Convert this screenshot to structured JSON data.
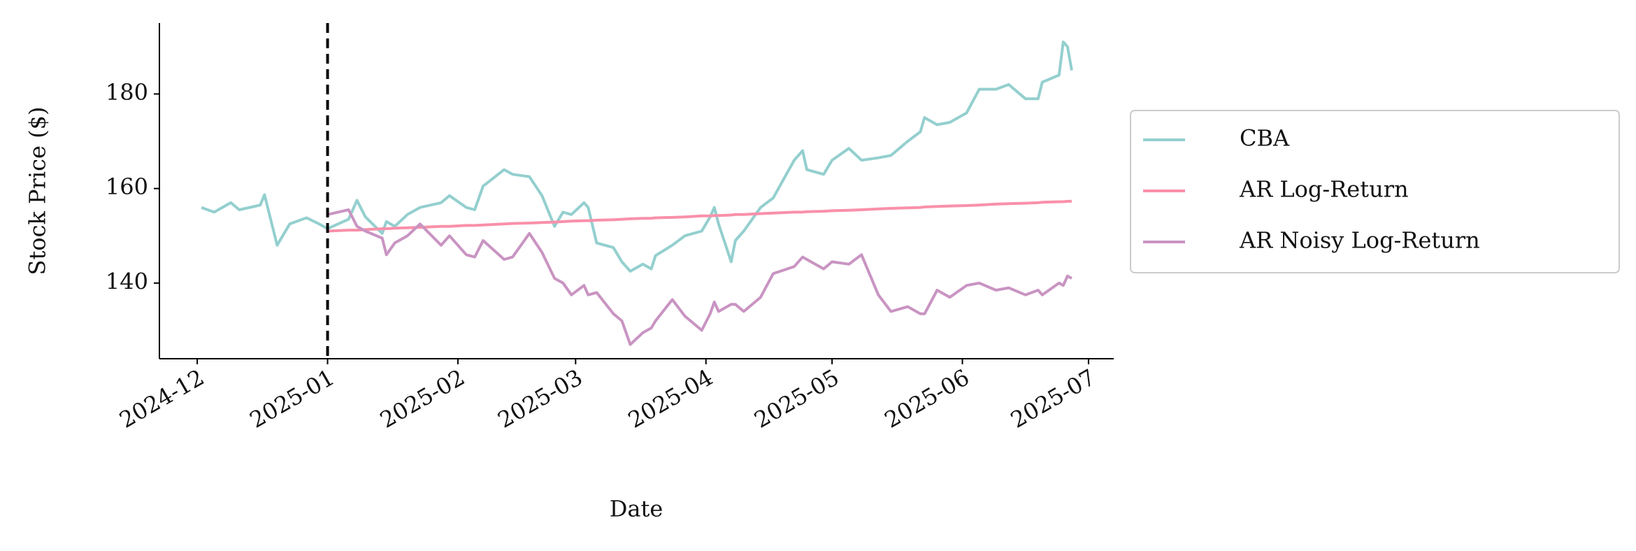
{
  "chart_data": {
    "type": "line",
    "x_label": "Date",
    "y_label": "Stock Price ($)",
    "x": [
      "2024-12-02",
      "2024-12-05",
      "2024-12-09",
      "2024-12-11",
      "2024-12-16",
      "2024-12-17",
      "2024-12-20",
      "2024-12-23",
      "2024-12-26",
      "2024-12-27",
      "2024-12-30",
      "2025-01-01",
      "2025-01-06",
      "2025-01-08",
      "2025-01-10",
      "2025-01-14",
      "2025-01-15",
      "2025-01-17",
      "2025-01-20",
      "2025-01-23",
      "2025-01-28",
      "2025-01-30",
      "2025-02-03",
      "2025-02-05",
      "2025-02-07",
      "2025-02-12",
      "2025-02-14",
      "2025-02-18",
      "2025-02-21",
      "2025-02-24",
      "2025-02-26",
      "2025-02-28",
      "2025-03-03",
      "2025-03-04",
      "2025-03-06",
      "2025-03-10",
      "2025-03-12",
      "2025-03-14",
      "2025-03-17",
      "2025-03-19",
      "2025-03-20",
      "2025-03-24",
      "2025-03-27",
      "2025-03-31",
      "2025-04-02",
      "2025-04-03",
      "2025-04-04",
      "2025-04-07",
      "2025-04-08",
      "2025-04-10",
      "2025-04-14",
      "2025-04-17",
      "2025-04-22",
      "2025-04-24",
      "2025-04-25",
      "2025-04-29",
      "2025-05-01",
      "2025-05-05",
      "2025-05-08",
      "2025-05-12",
      "2025-05-15",
      "2025-05-19",
      "2025-05-22",
      "2025-05-23",
      "2025-05-26",
      "2025-05-29",
      "2025-06-02",
      "2025-06-05",
      "2025-06-09",
      "2025-06-12",
      "2025-06-16",
      "2025-06-19",
      "2025-06-20",
      "2025-06-24",
      "2025-06-25",
      "2025-06-26",
      "2025-06-27"
    ],
    "series": [
      {
        "name": "CBA",
        "color": "#94cfcf",
        "values": [
          156,
          155,
          157,
          155.5,
          156.5,
          158.7,
          148,
          152.5,
          153.5,
          153.8,
          152.5,
          151.5,
          153.5,
          157.5,
          154,
          150.5,
          153,
          152,
          154.5,
          156,
          157,
          158.5,
          156,
          155.5,
          160.5,
          164,
          163,
          162.5,
          158.5,
          152,
          155,
          154.5,
          157,
          156,
          148.5,
          147.5,
          144.5,
          142.5,
          144,
          143,
          145.8,
          148,
          150,
          151,
          154,
          156,
          152.5,
          144.5,
          149,
          151,
          156,
          158,
          166,
          168,
          164,
          163,
          166,
          168.5,
          166,
          166.5,
          167,
          170,
          172,
          175,
          173.5,
          174,
          176,
          181,
          181,
          182,
          179,
          179,
          182.5,
          184,
          191,
          190,
          185
        ]
      },
      {
        "name": "AR Log-Return",
        "color": "#f990aa",
        "values": [
          null,
          null,
          null,
          null,
          null,
          null,
          null,
          null,
          null,
          null,
          null,
          151.0,
          151.2,
          151.2,
          151.3,
          151.5,
          151.5,
          151.6,
          151.7,
          151.8,
          152.0,
          152.0,
          152.2,
          152.2,
          152.3,
          152.5,
          152.6,
          152.7,
          152.8,
          152.9,
          153.0,
          153.1,
          153.2,
          153.2,
          153.3,
          153.4,
          153.5,
          153.6,
          153.7,
          153.7,
          153.8,
          153.9,
          154.0,
          154.2,
          154.2,
          154.3,
          154.3,
          154.4,
          154.5,
          154.5,
          154.7,
          154.8,
          155.0,
          155.0,
          155.1,
          155.2,
          155.3,
          155.4,
          155.5,
          155.7,
          155.8,
          155.9,
          156.0,
          156.1,
          156.2,
          156.3,
          156.4,
          156.5,
          156.7,
          156.8,
          156.9,
          157.0,
          157.1,
          157.2,
          157.2,
          157.3,
          157.3
        ]
      },
      {
        "name": "AR Noisy Log-Return",
        "color": "#c994c2",
        "values": [
          null,
          null,
          null,
          null,
          null,
          null,
          null,
          null,
          null,
          null,
          null,
          154.5,
          155.5,
          152,
          151,
          149.5,
          146,
          148.5,
          150,
          152.5,
          148,
          150,
          146,
          145.5,
          149,
          145,
          145.5,
          150.5,
          146.5,
          141,
          140,
          137.5,
          139.5,
          137.5,
          138,
          133.5,
          132,
          127,
          129.5,
          130.5,
          132,
          136.5,
          133,
          130,
          133.5,
          136,
          134,
          135.5,
          135.5,
          134,
          137,
          142,
          143.5,
          145.5,
          145,
          143,
          144.5,
          144,
          146,
          137.5,
          134,
          135,
          133.5,
          133.5,
          138.5,
          137,
          139.5,
          140,
          138.5,
          139,
          137.5,
          138.5,
          137.5,
          140,
          139.5,
          141.5,
          141
        ]
      }
    ],
    "xlim": [
      "2024-11-22",
      "2025-07-07"
    ],
    "xticks": [
      {
        "value": "2024-12-01",
        "label": "2024-12"
      },
      {
        "value": "2025-01-01",
        "label": "2025-01"
      },
      {
        "value": "2025-02-01",
        "label": "2025-02"
      },
      {
        "value": "2025-03-01",
        "label": "2025-03"
      },
      {
        "value": "2025-04-01",
        "label": "2025-04"
      },
      {
        "value": "2025-05-01",
        "label": "2025-05"
      },
      {
        "value": "2025-06-01",
        "label": "2025-06"
      },
      {
        "value": "2025-07-01",
        "label": "2025-07"
      }
    ],
    "ylim": [
      124,
      195
    ],
    "yticks": [
      140,
      160,
      180
    ],
    "vline_x": "2025-01-01",
    "grid": false,
    "legend": "outside right"
  }
}
